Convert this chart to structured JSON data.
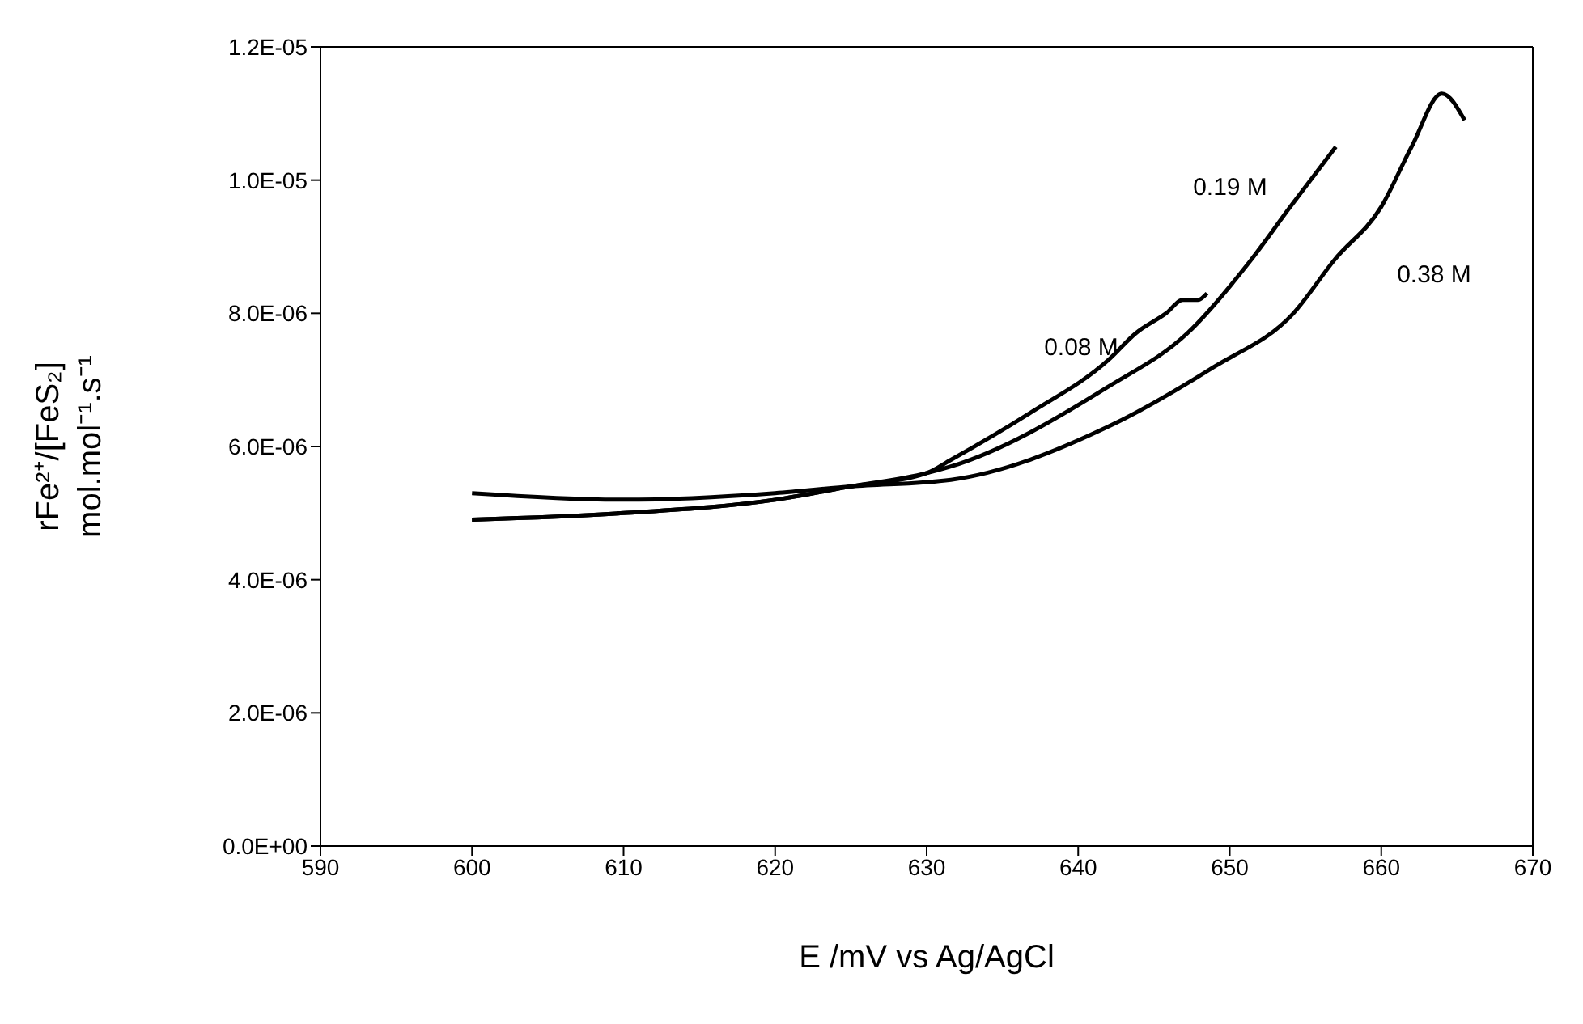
{
  "chart_data": {
    "type": "line",
    "xlabel": "E   /mV vs Ag/AgCl",
    "ylabel": "rFe²⁺/[FeS₂]\nmol.mol⁻¹.s⁻¹",
    "xlim": [
      590,
      670
    ],
    "xticks": [
      590,
      600,
      610,
      620,
      630,
      640,
      650,
      660,
      670
    ],
    "ylim": [
      0,
      1.2e-05
    ],
    "yticks": [
      {
        "value": 0,
        "label": "0.0E+00"
      },
      {
        "value": 2e-06,
        "label": "2.0E-06"
      },
      {
        "value": 4e-06,
        "label": "4.0E-06"
      },
      {
        "value": 6e-06,
        "label": "6.0E-06"
      },
      {
        "value": 8e-06,
        "label": "8.0E-06"
      },
      {
        "value": 1e-05,
        "label": "1.0E-05"
      },
      {
        "value": 1.2e-05,
        "label": "1.2E-05"
      }
    ],
    "grid": false,
    "marker": "none",
    "line_style": "solid",
    "series": [
      {
        "color": "#000000",
        "x": [
          600,
          610,
          620,
          625,
          630,
          631.6,
          636.8,
          642,
          643.8,
          645.8,
          646.9,
          647.9,
          648.5
        ],
        "values": [
          4.9e-06,
          5e-06,
          5.2e-06,
          5.4e-06,
          5.6e-06,
          5.8e-06,
          6.5e-06,
          7.3e-06,
          7.7e-06,
          8e-06,
          8.2e-06,
          8.2e-06,
          8.3e-06
        ]
      },
      {
        "color": "#000000",
        "x": [
          600,
          610,
          620,
          625,
          630,
          631.6,
          642,
          647.2,
          651.4,
          654,
          657
        ],
        "values": [
          4.9e-06,
          5e-06,
          5.2e-06,
          5.4e-06,
          5.6e-06,
          5.7e-06,
          6.9e-06,
          7.7e-06,
          8.8e-06,
          9.6e-06,
          1.05e-05
        ]
      },
      {
        "color": "#000000",
        "x": [
          600,
          610,
          620,
          625,
          631.6,
          642,
          649,
          654.2,
          656.9,
          660,
          662,
          664,
          665.5
        ],
        "values": [
          5.3e-06,
          5.2e-06,
          5.3e-06,
          5.4e-06,
          5.5e-06,
          6.3e-06,
          7.2e-06,
          8e-06,
          8.8e-06,
          9.6e-06,
          1.05e-05,
          1.13e-05,
          1.09e-05
        ]
      }
    ],
    "annotations": [
      "0.08 M",
      "0.19 M",
      "0.38 M"
    ]
  }
}
